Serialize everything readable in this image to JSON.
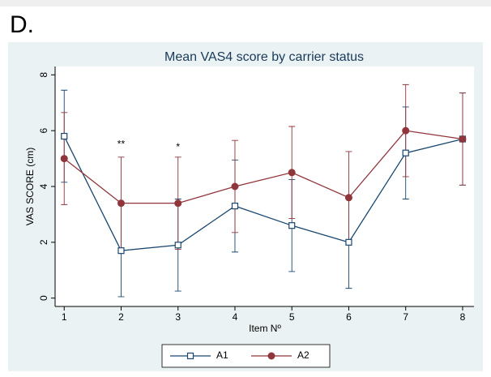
{
  "panel_label": "D.",
  "chart_data": {
    "type": "line",
    "title": "Mean VAS4 score by carrier status",
    "x_label": "Item Nº",
    "y_label": "VAS SCORE (cm)",
    "x": [
      1,
      2,
      3,
      4,
      5,
      6,
      7,
      8
    ],
    "series": [
      {
        "name": "A1",
        "color": "#1a476f",
        "marker": "square",
        "values": [
          5.8,
          1.7,
          1.9,
          3.3,
          2.6,
          2.0,
          5.2,
          5.7
        ],
        "errors": [
          1.65,
          1.65,
          1.65,
          1.65,
          1.65,
          1.65,
          1.65,
          1.65
        ]
      },
      {
        "name": "A2",
        "color": "#90353b",
        "marker": "circle",
        "values": [
          5.0,
          3.4,
          3.4,
          4.0,
          4.5,
          3.6,
          6.0,
          5.7
        ],
        "errors": [
          1.65,
          1.65,
          1.65,
          1.65,
          1.65,
          1.65,
          1.65,
          1.65
        ]
      }
    ],
    "annotations": [
      {
        "text": "**",
        "x": 2,
        "y": 5.5
      },
      {
        "text": "*",
        "x": 3,
        "y": 5.4
      }
    ],
    "xlim": [
      0.84,
      8.2
    ],
    "xticks": [
      1,
      2,
      3,
      4,
      5,
      6,
      7,
      8
    ],
    "ylim": [
      -0.3,
      8.3
    ],
    "yticks": [
      0,
      2,
      4,
      6,
      8
    ],
    "legend": "bottom"
  }
}
